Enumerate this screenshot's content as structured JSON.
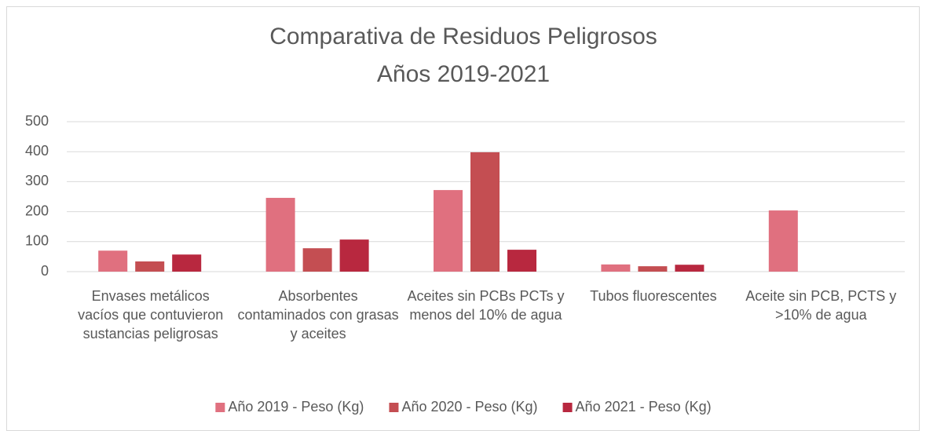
{
  "chart_data": {
    "type": "bar",
    "title": "Comparativa de Residuos Peligrosos",
    "subtitle": "Años 2019-2021",
    "categories": [
      "Envases  metálicos vacíos que contuvieron sustancias peligrosas",
      "Absorbentes contaminados con grasas y aceites",
      "Aceites sin PCBs PCTs y menos del 10% de agua",
      "Tubos fluorescentes",
      "Aceite sin PCB, PCTS y >10% de agua"
    ],
    "series": [
      {
        "name": "Año 2019 - Peso (Kg)",
        "color": "#e0707f",
        "values": [
          70,
          246,
          272,
          24,
          204
        ]
      },
      {
        "name": "Año 2020 - Peso (Kg)",
        "color": "#c44e52",
        "values": [
          34,
          78,
          398,
          18,
          null
        ]
      },
      {
        "name": "Año 2021 - Peso (Kg)",
        "color": "#b8283f",
        "values": [
          57,
          107,
          73,
          23,
          null
        ]
      }
    ],
    "ylim": [
      0,
      500
    ],
    "yticks": [
      0,
      100,
      200,
      300,
      400,
      500
    ],
    "grid": true,
    "legend": "bottom"
  }
}
